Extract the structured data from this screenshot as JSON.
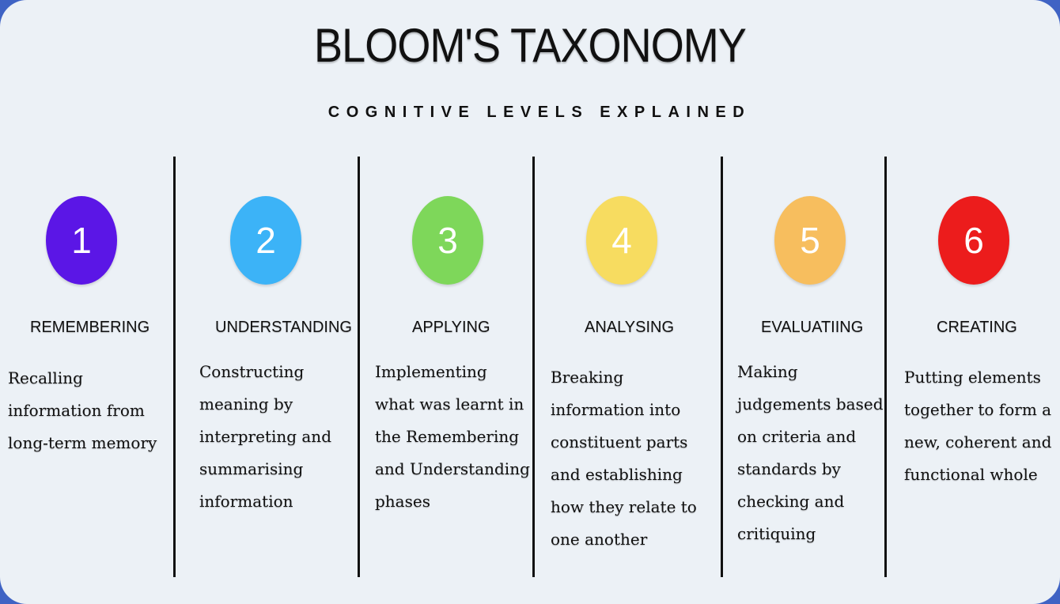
{
  "title": "BLOOM'S TAXONOMY",
  "subtitle": "COGNITIVE LEVELS EXPLAINED",
  "levels": [
    {
      "number": "1",
      "color": "#5b16e6",
      "label": "REMEMBERING",
      "description": "Recalling\ninformation from\nlong-term memory"
    },
    {
      "number": "2",
      "color": "#3cb3f7",
      "label": "UNDERSTANDING",
      "description": "Constructing\nmeaning by\ninterpreting and\nsummarising\ninformation"
    },
    {
      "number": "3",
      "color": "#7ed75a",
      "label": "APPLYING",
      "description": "Implementing\nwhat was learnt in\nthe Remembering\nand Understanding\nphases"
    },
    {
      "number": "4",
      "color": "#f7dc60",
      "label": "ANALYSING",
      "description": "Breaking\ninformation into\nconstituent parts\nand establishing\nhow they relate to\none another"
    },
    {
      "number": "5",
      "color": "#f7be5e",
      "label": "EVALUATIING",
      "description": "Making\njudgements based\non criteria and\nstandards by\nchecking and\ncritiquing"
    },
    {
      "number": "6",
      "color": "#ec1c1c",
      "label": "CREATING",
      "description": "Putting elements\ntogether to form a\nnew, coherent and\nfunctional whole"
    }
  ]
}
